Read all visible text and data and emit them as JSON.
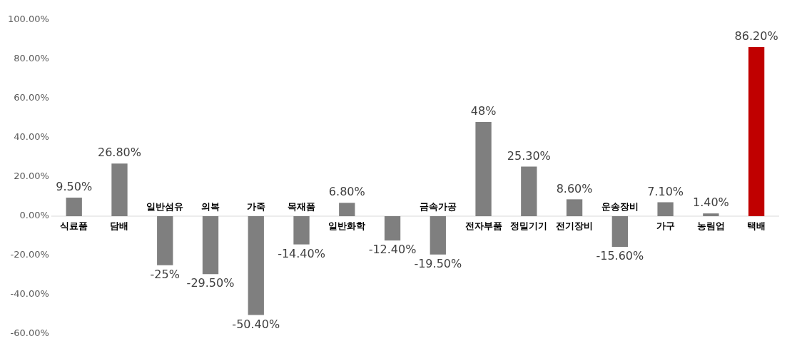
{
  "chart_data": {
    "type": "bar",
    "categories": [
      "식료품",
      "담배",
      "일반섬유",
      "의복",
      "가죽",
      "목재품",
      "일반화학",
      null,
      "금속가공",
      "전자부품",
      "정밀기기",
      "전기장비",
      "운송장비",
      "가구",
      "농림업",
      "택배"
    ],
    "values": [
      9.5,
      26.8,
      -25,
      -29.5,
      -50.4,
      -14.4,
      6.8,
      -12.4,
      -19.5,
      48,
      25.3,
      8.6,
      -15.6,
      7.1,
      1.4,
      86.2
    ],
    "colors": [
      "#7f7f7f",
      "#7f7f7f",
      "#7f7f7f",
      "#7f7f7f",
      "#7f7f7f",
      "#7f7f7f",
      "#7f7f7f",
      "#7f7f7f",
      "#7f7f7f",
      "#7f7f7f",
      "#7f7f7f",
      "#7f7f7f",
      "#7f7f7f",
      "#7f7f7f",
      "#7f7f7f",
      "#c00000"
    ],
    "value_labels": [
      "9.50%",
      "26.80%",
      "-25%",
      "-29.50%",
      "-50.40%",
      "-14.40%",
      "6.80%",
      "-12.40%",
      "-19.50%",
      "48%",
      "25.30%",
      "8.60%",
      "-15.60%",
      "7.10%",
      "1.40%",
      "86.20%"
    ],
    "ylim": [
      -60,
      100
    ],
    "yticks": [
      {
        "value": -60,
        "label": "-60.00%"
      },
      {
        "value": -40,
        "label": "-40.00%"
      },
      {
        "value": -20,
        "label": "-20.00%"
      },
      {
        "value": 0,
        "label": "0.00%"
      },
      {
        "value": 20,
        "label": "20.00%"
      },
      {
        "value": 40,
        "label": "40.00%"
      },
      {
        "value": 60,
        "label": "60.00%"
      },
      {
        "value": 80,
        "label": "80.00%"
      },
      {
        "value": 100,
        "label": "100.00%"
      }
    ],
    "grid": false
  }
}
